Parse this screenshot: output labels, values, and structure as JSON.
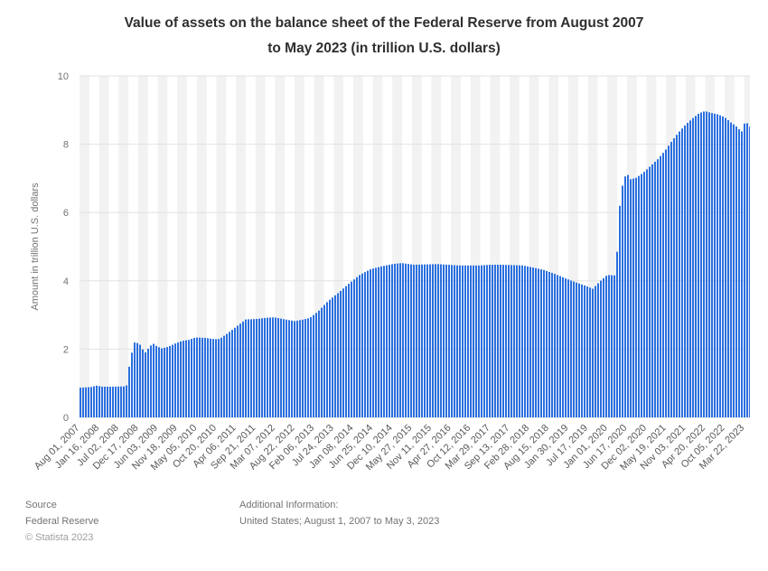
{
  "header": {
    "title_line1": "Value of assets on the balance sheet of the Federal Reserve from August 2007",
    "title_line2": "to May 2023 (in trillion U.S. dollars)"
  },
  "footer": {
    "source_label": "Source",
    "source_name": "Federal Reserve",
    "copyright": "© Statista 2023",
    "additional_info_label": "Additional Information:",
    "additional_info": "United States; August 1, 2007 to May 3, 2023"
  },
  "chart_data": {
    "type": "bar",
    "title": "Value of assets on the balance sheet of the Federal Reserve from August 2007 to May 2023 (in trillion U.S. dollars)",
    "xlabel": "",
    "ylabel": "Amount in trillion U.S. dollars",
    "ylim": [
      0,
      10
    ],
    "yticks": [
      0,
      2,
      4,
      6,
      8,
      10
    ],
    "grid": true,
    "legend": false,
    "bar_color": "#2a6fdf",
    "band_color": "#f2f2f2",
    "gridline_color": "#e2e2e2",
    "frequency": "weekly",
    "x_start_date": "2007-08-01",
    "x_end_date": "2023-05-03",
    "x_tick_every_n_weeks": 24,
    "background_band_weeks": 12,
    "x_tick_labels": [
      "Aug 01, 2007",
      "Jan 16, 2008",
      "Jul 02, 2008",
      "Dec 17, 2008",
      "Jun 03, 2009",
      "Nov 18, 2009",
      "May 05, 2010",
      "Oct 20, 2010",
      "Apr 06, 2011",
      "Sep 21, 2011",
      "Mar 07, 2012",
      "Aug 22, 2012",
      "Feb 06, 2013",
      "Jul 24, 2013",
      "Jan 08, 2014",
      "Jun 25, 2014",
      "Dec 10, 2014",
      "May 27, 2015",
      "Nov 11, 2015",
      "Apr 27, 2016",
      "Oct 12, 2016",
      "Mar 29, 2017",
      "Sep 13, 2017",
      "Feb 28, 2018",
      "Aug 15, 2018",
      "Jan 30, 2019",
      "Jul 17, 2019",
      "Jan 01, 2020",
      "Jun 17, 2020",
      "Dec 02, 2020",
      "May 19, 2021",
      "Nov 03, 2021",
      "Apr 20, 2022",
      "Oct 05, 2022",
      "Mar 22, 2023"
    ],
    "anchors": [
      {
        "d": "2007-08-01",
        "v": 0.87
      },
      {
        "d": "2007-11-07",
        "v": 0.89
      },
      {
        "d": "2007-12-26",
        "v": 0.93
      },
      {
        "d": "2008-02-13",
        "v": 0.9
      },
      {
        "d": "2008-05-07",
        "v": 0.9
      },
      {
        "d": "2008-09-03",
        "v": 0.91
      },
      {
        "d": "2008-09-17",
        "v": 1.0
      },
      {
        "d": "2008-10-01",
        "v": 1.5
      },
      {
        "d": "2008-10-15",
        "v": 1.77
      },
      {
        "d": "2008-10-29",
        "v": 1.97
      },
      {
        "d": "2008-11-12",
        "v": 2.21
      },
      {
        "d": "2008-12-03",
        "v": 2.12
      },
      {
        "d": "2008-12-17",
        "v": 2.25
      },
      {
        "d": "2009-01-14",
        "v": 2.03
      },
      {
        "d": "2009-02-18",
        "v": 1.9
      },
      {
        "d": "2009-03-25",
        "v": 2.07
      },
      {
        "d": "2009-04-22",
        "v": 2.17
      },
      {
        "d": "2009-05-27",
        "v": 2.08
      },
      {
        "d": "2009-07-08",
        "v": 2.02
      },
      {
        "d": "2009-09-02",
        "v": 2.07
      },
      {
        "d": "2009-10-28",
        "v": 2.16
      },
      {
        "d": "2009-12-30",
        "v": 2.24
      },
      {
        "d": "2010-02-24",
        "v": 2.27
      },
      {
        "d": "2010-04-21",
        "v": 2.34
      },
      {
        "d": "2010-07-14",
        "v": 2.33
      },
      {
        "d": "2010-10-06",
        "v": 2.29
      },
      {
        "d": "2010-11-17",
        "v": 2.3
      },
      {
        "d": "2011-01-26",
        "v": 2.47
      },
      {
        "d": "2011-04-13",
        "v": 2.67
      },
      {
        "d": "2011-06-29",
        "v": 2.87
      },
      {
        "d": "2011-09-21",
        "v": 2.88
      },
      {
        "d": "2011-12-28",
        "v": 2.92
      },
      {
        "d": "2012-02-29",
        "v": 2.93
      },
      {
        "d": "2012-05-30",
        "v": 2.87
      },
      {
        "d": "2012-08-22",
        "v": 2.82
      },
      {
        "d": "2012-10-24",
        "v": 2.86
      },
      {
        "d": "2012-12-26",
        "v": 2.91
      },
      {
        "d": "2013-03-06",
        "v": 3.09
      },
      {
        "d": "2013-06-05",
        "v": 3.41
      },
      {
        "d": "2013-09-04",
        "v": 3.66
      },
      {
        "d": "2013-12-04",
        "v": 3.93
      },
      {
        "d": "2014-03-05",
        "v": 4.18
      },
      {
        "d": "2014-06-04",
        "v": 4.34
      },
      {
        "d": "2014-09-03",
        "v": 4.42
      },
      {
        "d": "2014-12-10",
        "v": 4.49
      },
      {
        "d": "2015-02-25",
        "v": 4.52
      },
      {
        "d": "2015-06-10",
        "v": 4.47
      },
      {
        "d": "2015-09-16",
        "v": 4.48
      },
      {
        "d": "2015-12-30",
        "v": 4.49
      },
      {
        "d": "2016-03-30",
        "v": 4.47
      },
      {
        "d": "2016-06-29",
        "v": 4.45
      },
      {
        "d": "2016-09-28",
        "v": 4.45
      },
      {
        "d": "2016-12-28",
        "v": 4.45
      },
      {
        "d": "2017-03-29",
        "v": 4.47
      },
      {
        "d": "2017-06-28",
        "v": 4.47
      },
      {
        "d": "2017-09-27",
        "v": 4.46
      },
      {
        "d": "2017-12-27",
        "v": 4.45
      },
      {
        "d": "2018-03-28",
        "v": 4.39
      },
      {
        "d": "2018-06-27",
        "v": 4.32
      },
      {
        "d": "2018-09-26",
        "v": 4.21
      },
      {
        "d": "2018-12-26",
        "v": 4.08
      },
      {
        "d": "2019-03-27",
        "v": 3.96
      },
      {
        "d": "2019-06-26",
        "v": 3.85
      },
      {
        "d": "2019-08-28",
        "v": 3.76
      },
      {
        "d": "2019-09-18",
        "v": 3.86
      },
      {
        "d": "2019-10-30",
        "v": 4.0
      },
      {
        "d": "2019-12-25",
        "v": 4.17
      },
      {
        "d": "2020-02-26",
        "v": 4.16
      },
      {
        "d": "2020-03-11",
        "v": 4.31
      },
      {
        "d": "2020-03-25",
        "v": 5.25
      },
      {
        "d": "2020-04-08",
        "v": 6.08
      },
      {
        "d": "2020-04-22",
        "v": 6.57
      },
      {
        "d": "2020-05-13",
        "v": 6.93
      },
      {
        "d": "2020-06-10",
        "v": 7.17
      },
      {
        "d": "2020-07-08",
        "v": 6.97
      },
      {
        "d": "2020-08-26",
        "v": 7.01
      },
      {
        "d": "2020-10-28",
        "v": 7.16
      },
      {
        "d": "2020-12-30",
        "v": 7.36
      },
      {
        "d": "2021-03-03",
        "v": 7.56
      },
      {
        "d": "2021-05-05",
        "v": 7.81
      },
      {
        "d": "2021-06-30",
        "v": 8.08
      },
      {
        "d": "2021-08-25",
        "v": 8.33
      },
      {
        "d": "2021-10-27",
        "v": 8.57
      },
      {
        "d": "2021-12-29",
        "v": 8.76
      },
      {
        "d": "2022-02-23",
        "v": 8.91
      },
      {
        "d": "2022-04-13",
        "v": 8.97
      },
      {
        "d": "2022-06-01",
        "v": 8.92
      },
      {
        "d": "2022-08-03",
        "v": 8.87
      },
      {
        "d": "2022-09-28",
        "v": 8.79
      },
      {
        "d": "2022-11-23",
        "v": 8.63
      },
      {
        "d": "2022-12-28",
        "v": 8.55
      },
      {
        "d": "2023-02-01",
        "v": 8.43
      },
      {
        "d": "2023-03-08",
        "v": 8.34
      },
      {
        "d": "2023-03-22",
        "v": 8.73
      },
      {
        "d": "2023-04-05",
        "v": 8.63
      },
      {
        "d": "2023-04-26",
        "v": 8.56
      },
      {
        "d": "2023-05-03",
        "v": 8.51
      }
    ]
  }
}
